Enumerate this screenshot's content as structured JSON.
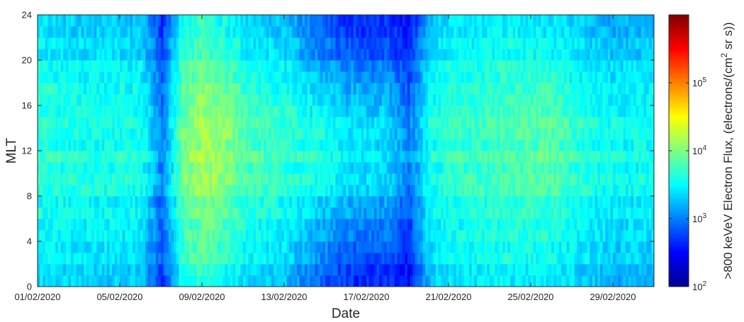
{
  "chart_data": {
    "type": "heatmap",
    "title": "",
    "xlabel": "Date",
    "ylabel": "MLT",
    "colorbar_label": ">800 keVeV Electron Flux, (electrons/(cm² sr s))",
    "colorbar_label_parts": [
      ">800 keVeV Electron Flux, (electrons/(cm",
      "2",
      " sr s))"
    ],
    "colormap": "jet",
    "color_scale": "log",
    "clim": [
      100,
      1000000
    ],
    "colorbar_ticks": [
      {
        "value": 100,
        "base": "10",
        "exp": "2"
      },
      {
        "value": 1000,
        "base": "10",
        "exp": "3"
      },
      {
        "value": 10000,
        "base": "10",
        "exp": "4"
      },
      {
        "value": 100000,
        "base": "10",
        "exp": "5"
      }
    ],
    "x_range": [
      "2020-02-01",
      "2020-03-02"
    ],
    "x_ticks": [
      {
        "date": "2020-02-01",
        "label": "01/02/2020"
      },
      {
        "date": "2020-02-05",
        "label": "05/02/2020"
      },
      {
        "date": "2020-02-09",
        "label": "09/02/2020"
      },
      {
        "date": "2020-02-13",
        "label": "13/02/2020"
      },
      {
        "date": "2020-02-17",
        "label": "17/02/2020"
      },
      {
        "date": "2020-02-21",
        "label": "21/02/2020"
      },
      {
        "date": "2020-02-25",
        "label": "25/02/2020"
      },
      {
        "date": "2020-02-29",
        "label": "29/02/2020"
      }
    ],
    "ylim": [
      0,
      24
    ],
    "y_ticks": [
      0,
      4,
      8,
      12,
      16,
      20,
      24
    ],
    "mlt_bins": [
      0.5,
      1.5,
      2.5,
      3.5,
      4.5,
      5.5,
      6.5,
      7.5,
      8.5,
      9.5,
      10.5,
      11.5,
      12.5,
      13.5,
      14.5,
      15.5,
      16.5,
      17.5,
      18.5,
      19.5,
      20.5,
      21.5,
      22.5,
      23.5
    ],
    "dates": [
      "2020-02-01",
      "2020-02-02",
      "2020-02-03",
      "2020-02-04",
      "2020-02-05",
      "2020-02-06",
      "2020-02-07",
      "2020-02-08",
      "2020-02-09",
      "2020-02-10",
      "2020-02-11",
      "2020-02-12",
      "2020-02-13",
      "2020-02-14",
      "2020-02-15",
      "2020-02-16",
      "2020-02-17",
      "2020-02-18",
      "2020-02-19",
      "2020-02-20",
      "2020-02-21",
      "2020-02-22",
      "2020-02-23",
      "2020-02-24",
      "2020-02-25",
      "2020-02-26",
      "2020-02-27",
      "2020-02-28",
      "2020-02-29",
      "2020-03-01"
    ],
    "flux_log10_dayside": [
      3.65,
      3.65,
      3.6,
      3.6,
      3.6,
      3.6,
      3.0,
      3.95,
      4.15,
      4.05,
      3.85,
      3.75,
      3.7,
      3.65,
      3.55,
      3.45,
      3.4,
      3.4,
      3.0,
      3.55,
      3.7,
      3.7,
      3.75,
      3.8,
      3.85,
      3.85,
      3.7,
      3.6,
      3.55,
      3.55
    ],
    "flux_log10_nightside": [
      3.45,
      3.4,
      3.35,
      3.35,
      3.35,
      3.3,
      2.75,
      3.6,
      3.75,
      3.6,
      3.45,
      3.35,
      3.3,
      3.05,
      2.9,
      2.75,
      2.7,
      2.75,
      2.55,
      3.3,
      3.45,
      3.45,
      3.5,
      3.5,
      3.5,
      3.45,
      3.4,
      3.3,
      3.2,
      3.25
    ],
    "grid": false,
    "legend": "none"
  }
}
